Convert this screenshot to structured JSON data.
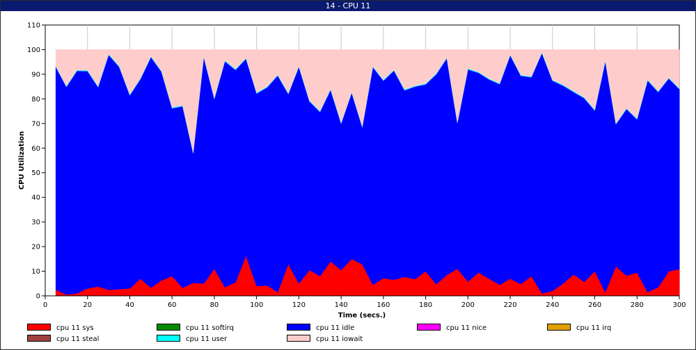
{
  "window": {
    "title": "14 - CPU 11"
  },
  "chart_data": {
    "type": "area",
    "stacked": true,
    "xlabel": "Time (secs.)",
    "ylabel": "CPU Utilization",
    "xlim": [
      0,
      300
    ],
    "ylim": [
      0,
      110
    ],
    "xticks": [
      0,
      20,
      40,
      60,
      80,
      100,
      120,
      140,
      160,
      180,
      200,
      220,
      240,
      260,
      280,
      300
    ],
    "yticks": [
      0,
      10,
      20,
      30,
      40,
      50,
      60,
      70,
      80,
      90,
      100,
      110
    ],
    "grid": "vertical",
    "legend_position": "bottom",
    "x": [
      5,
      10,
      15,
      20,
      25,
      30,
      35,
      40,
      45,
      50,
      55,
      60,
      65,
      70,
      75,
      80,
      85,
      90,
      95,
      100,
      105,
      110,
      115,
      120,
      125,
      130,
      135,
      140,
      145,
      150,
      155,
      160,
      165,
      170,
      175,
      180,
      185,
      190,
      195,
      200,
      205,
      210,
      215,
      220,
      225,
      230,
      235,
      240,
      245,
      250,
      255,
      260,
      265,
      270,
      275,
      280,
      285,
      290,
      295,
      300
    ],
    "series": [
      {
        "name": "cpu 11 sys",
        "color": "#ff0000",
        "values": [
          2.5,
          0.5,
          1,
          3,
          3.8,
          2.4,
          2.7,
          3,
          7,
          3.3,
          6.3,
          8,
          3.3,
          5.3,
          5,
          11,
          3.5,
          5.5,
          16.3,
          4,
          4.2,
          1.5,
          13,
          5,
          10.5,
          8,
          14,
          10.5,
          15,
          12.8,
          4.5,
          7.2,
          6.5,
          7.7,
          6.8,
          10,
          4.7,
          8.5,
          11,
          5.8,
          9.5,
          7,
          4.5,
          7,
          4.8,
          8,
          1,
          2,
          5,
          8.7,
          5.7,
          10,
          1.5,
          12,
          8.2,
          9.5,
          1.5,
          3.5,
          10,
          10.8
        ]
      },
      {
        "name": "cpu 11 softirq",
        "color": "#008a00",
        "values": [
          0,
          0,
          0,
          0,
          0,
          0,
          0,
          0,
          0,
          0,
          0,
          0,
          0,
          0,
          0,
          0,
          0,
          0,
          0,
          0,
          0,
          0,
          0,
          0,
          0,
          0,
          0,
          0,
          0,
          0,
          0,
          0,
          0,
          0,
          0,
          0,
          0,
          0,
          0,
          0,
          0,
          0,
          0,
          0,
          0,
          0,
          0,
          0,
          0,
          0,
          0,
          0,
          0,
          0,
          0,
          0,
          0,
          0,
          0,
          0
        ]
      },
      {
        "name": "cpu 11 idle",
        "color": "#0000ff",
        "values": [
          90.5,
          84.4,
          90.4,
          88.3,
          81,
          95.5,
          90.3,
          78.5,
          81,
          93.7,
          84.7,
          68.2,
          73.7,
          52.6,
          92,
          69,
          91.8,
          86.3,
          80,
          78.2,
          80.5,
          88,
          69,
          88,
          68.5,
          66.7,
          69.7,
          59.5,
          67.5,
          55.7,
          88.4,
          80.2,
          85,
          75.8,
          78.2,
          75.9,
          85.3,
          88,
          59.2,
          86.2,
          81.1,
          80.9,
          81.5,
          90.7,
          84.6,
          80.8,
          97.6,
          85.4,
          80.4,
          74.1,
          74.6,
          65.3,
          93.8,
          57.7,
          67.7,
          62.2,
          86,
          79.3,
          78.3,
          73.2
        ]
      },
      {
        "name": "cpu 11 nice",
        "color": "#ff00ff",
        "values": [
          0,
          0,
          0,
          0,
          0,
          0,
          0,
          0,
          0,
          0,
          0,
          0,
          0,
          0,
          0,
          0,
          0,
          0,
          0,
          0,
          0,
          0,
          0,
          0,
          0,
          0,
          0,
          0,
          0,
          0,
          0,
          0,
          0,
          0,
          0,
          0,
          0,
          0,
          0,
          0,
          0,
          0,
          0,
          0,
          0,
          0,
          0,
          0,
          0,
          0,
          0,
          0,
          0,
          0,
          0,
          0,
          0,
          0,
          0,
          0
        ]
      },
      {
        "name": "cpu 11 irq",
        "color": "#e0a000",
        "values": [
          0,
          0,
          0,
          0,
          0,
          0,
          0,
          0,
          0,
          0,
          0,
          0,
          0,
          0,
          0,
          0,
          0,
          0,
          0,
          0,
          0,
          0,
          0,
          0,
          0,
          0,
          0,
          0,
          0,
          0,
          0,
          0,
          0,
          0,
          0,
          0,
          0,
          0,
          0,
          0,
          0,
          0,
          0,
          0,
          0,
          0,
          0,
          0,
          0,
          0,
          0,
          0,
          0,
          0,
          0,
          0,
          0,
          0,
          0,
          0
        ]
      },
      {
        "name": "cpu 11 steal",
        "color": "#a04040",
        "values": [
          0,
          0,
          0,
          0,
          0,
          0,
          0,
          0,
          0,
          0,
          0,
          0,
          0,
          0,
          0,
          0,
          0,
          0,
          0,
          0,
          0,
          0,
          0,
          0,
          0,
          0,
          0,
          0,
          0,
          0,
          0,
          0,
          0,
          0,
          0,
          0,
          0,
          0,
          0,
          0,
          0,
          0,
          0,
          0,
          0,
          0,
          0,
          0,
          0,
          0,
          0,
          0,
          0,
          0,
          0,
          0,
          0,
          0,
          0,
          0
        ]
      },
      {
        "name": "cpu 11 user",
        "color": "#00ffff",
        "values": [
          0.3,
          0.3,
          0.3,
          0.3,
          0.3,
          0.3,
          0.3,
          0.3,
          0.3,
          0.3,
          0.3,
          0.3,
          0.3,
          0.3,
          0.3,
          0.3,
          0.3,
          0.3,
          0.3,
          0.3,
          0.3,
          0.3,
          0.3,
          0.3,
          0.3,
          0.3,
          0.3,
          0.3,
          0.3,
          0.3,
          0.3,
          0.3,
          0.3,
          0.3,
          0.3,
          0.3,
          0.3,
          0.3,
          0.3,
          0.3,
          0.3,
          0.3,
          0.3,
          0.3,
          0.3,
          0.3,
          0.3,
          0.3,
          0.3,
          0.3,
          0.3,
          0.3,
          0.3,
          0.3,
          0.3,
          0.3,
          0.3,
          0.3,
          0.3,
          0.3
        ]
      },
      {
        "name": "cpu 11 iowait",
        "color": "#ffcccc",
        "values": [
          6.7,
          14.8,
          8.3,
          8.4,
          14.9,
          1.8,
          6.7,
          18.2,
          11.7,
          2.7,
          8.7,
          23.5,
          22.7,
          41.8,
          2.7,
          19.7,
          4.4,
          7.9,
          3.4,
          17.5,
          15,
          10.2,
          17.7,
          6.7,
          20.7,
          25,
          16,
          29.7,
          17.2,
          31.2,
          6.8,
          12.3,
          8.2,
          16.2,
          14.7,
          13.8,
          9.7,
          3.2,
          29.5,
          7.7,
          9.1,
          11.8,
          13.7,
          2,
          10.3,
          10.9,
          1.1,
          12.3,
          14.3,
          16.9,
          19.4,
          24.4,
          4.4,
          30,
          23.8,
          28,
          12.2,
          16.9,
          11.4,
          15.7
        ]
      }
    ]
  }
}
